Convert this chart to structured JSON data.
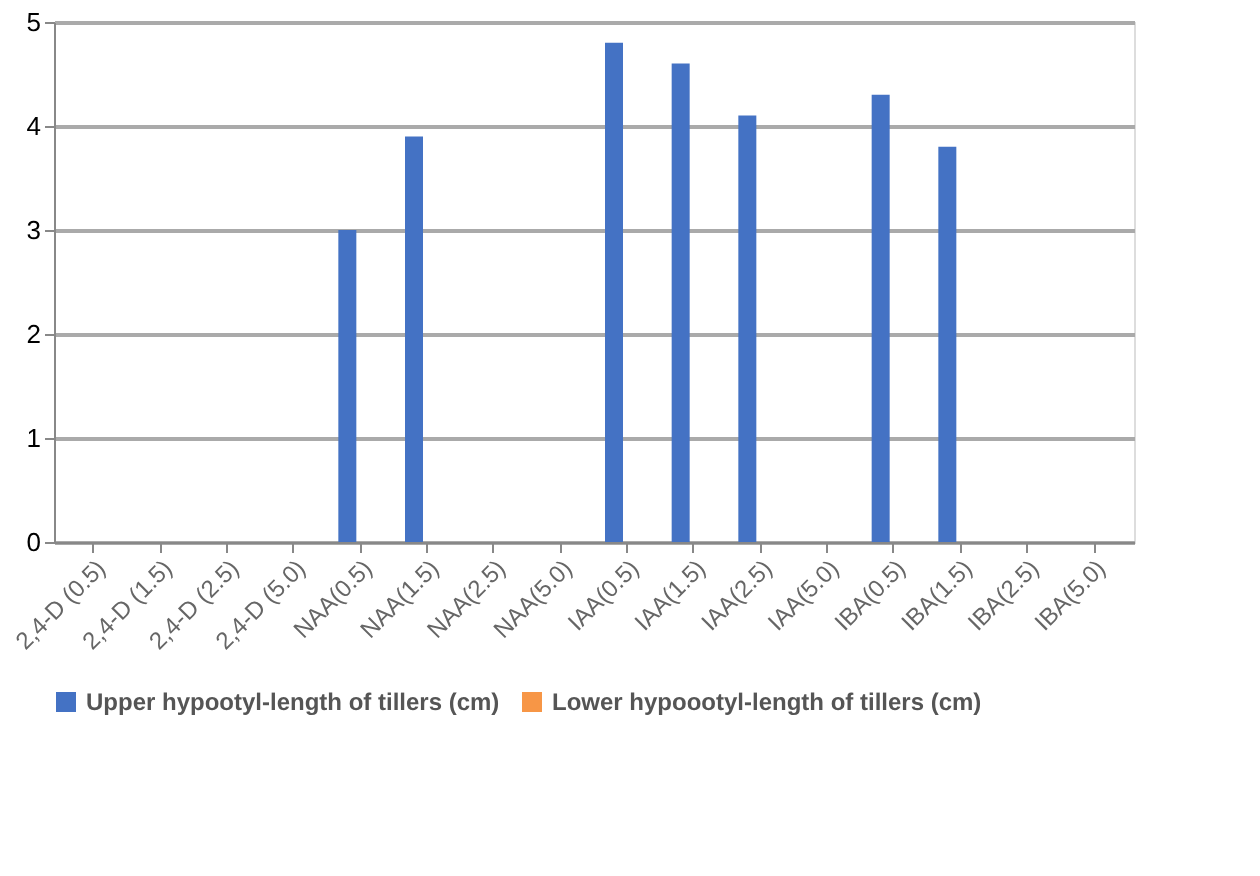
{
  "chart_data": {
    "type": "bar",
    "categories": [
      "2,4-D (0.5)",
      "2,4-D (1.5)",
      "2,4-D (2.5)",
      "2,4-D (5.0)",
      "NAA(0.5)",
      "NAA(1.5)",
      "NAA(2.5)",
      "NAA(5.0)",
      "IAA(0.5)",
      "IAA(1.5)",
      "IAA(2.5)",
      "IAA(5.0)",
      "IBA(0.5)",
      "IBA(1.5)",
      "IBA(2.5)",
      "IBA(5.0)"
    ],
    "series": [
      {
        "name": "Upper hypootyl-length of tillers (cm)",
        "color": "#4472c4",
        "values": [
          0,
          0,
          0,
          0,
          3.0,
          3.9,
          0,
          0,
          4.8,
          4.6,
          4.1,
          0,
          4.3,
          3.8,
          0,
          0
        ]
      },
      {
        "name": "Lower hypoootyl-length of tillers (cm)",
        "color": "#f79646",
        "values": [
          0,
          0,
          0,
          0,
          0,
          0,
          0,
          0,
          0,
          0,
          0,
          0,
          0,
          0,
          0,
          0
        ]
      }
    ],
    "ylim": [
      0,
      5
    ],
    "yticks": [
      0,
      1,
      2,
      3,
      4,
      5
    ],
    "grid": "y",
    "legend": "bottom"
  }
}
